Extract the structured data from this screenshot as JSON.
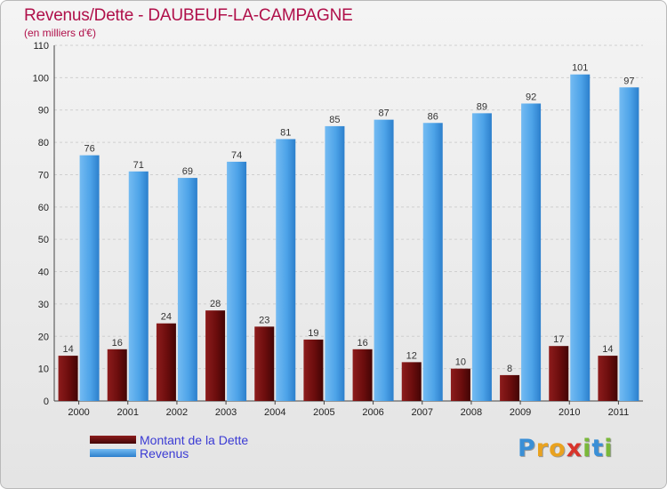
{
  "header": {
    "title": "Revenus/Dette - DAUBEUF-LA-CAMPAGNE",
    "subtitle": "(en milliers d'€)"
  },
  "chart_data": {
    "type": "bar",
    "title": "Revenus/Dette - DAUBEUF-LA-CAMPAGNE",
    "subtitle": "(en milliers d'€)",
    "categories": [
      "2000",
      "2001",
      "2002",
      "2003",
      "2004",
      "2005",
      "2006",
      "2007",
      "2008",
      "2009",
      "2010",
      "2011"
    ],
    "series": [
      {
        "name": "Montant de la Dette",
        "color": "#6b0d0d",
        "values": [
          14,
          16,
          24,
          28,
          23,
          19,
          16,
          12,
          10,
          8,
          17,
          14
        ]
      },
      {
        "name": "Revenus",
        "color": "#4da3e8",
        "values": [
          76,
          71,
          69,
          74,
          81,
          85,
          87,
          86,
          89,
          92,
          101,
          97
        ]
      }
    ],
    "ylim": [
      0,
      110
    ],
    "yticks": [
      0,
      10,
      20,
      30,
      40,
      50,
      60,
      70,
      80,
      90,
      100,
      110
    ],
    "grid": true,
    "legend": "bottom-left"
  },
  "legend": {
    "items": [
      {
        "label": "Montant de la Dette",
        "color": "#6b0d0d"
      },
      {
        "label": "Revenus",
        "color": "#4da3e8"
      }
    ]
  },
  "logo": {
    "letters": [
      "P",
      "r",
      "o",
      "x",
      "i",
      "t",
      "i"
    ],
    "colors": [
      "#3a8fd6",
      "#e9a21f",
      "#e9a21f",
      "#d8342b",
      "#7ab83a",
      "#3a8fd6",
      "#7ab83a"
    ]
  }
}
